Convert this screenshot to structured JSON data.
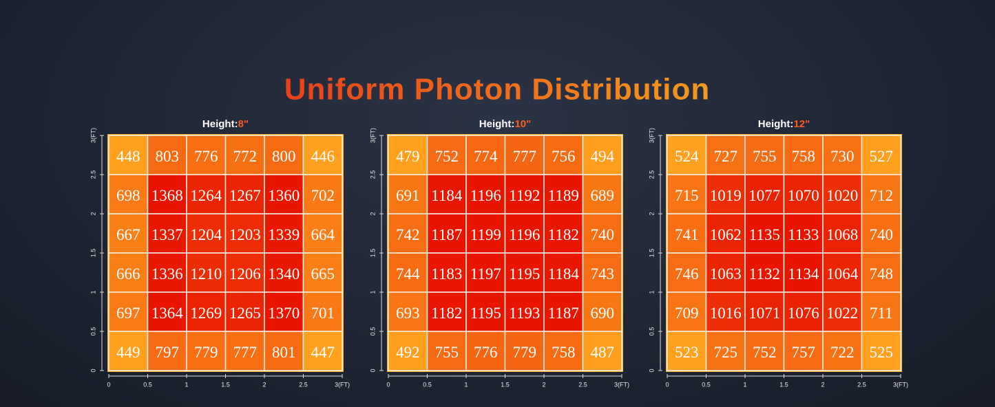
{
  "title": "Uniform Photon Distribution",
  "chart_data": [
    {
      "type": "heatmap",
      "title": "Height:",
      "height": "8\"",
      "xlim": [
        0,
        3
      ],
      "ylim": [
        0,
        3
      ],
      "xticks": [
        0,
        0.5,
        1,
        1.5,
        2,
        2.5,
        {
          "value": 3,
          "label": "3(FT)"
        }
      ],
      "yticks": [
        0,
        0.5,
        1,
        1.5,
        2,
        2.5,
        {
          "value": 3,
          "label": "3(FT)"
        }
      ],
      "values": [
        [
          448,
          803,
          776,
          772,
          800,
          446
        ],
        [
          698,
          1368,
          1264,
          1267,
          1360,
          702
        ],
        [
          667,
          1337,
          1204,
          1203,
          1339,
          664
        ],
        [
          666,
          1336,
          1210,
          1206,
          1340,
          665
        ],
        [
          697,
          1364,
          1269,
          1265,
          1370,
          701
        ],
        [
          449,
          797,
          779,
          777,
          801,
          447
        ]
      ]
    },
    {
      "type": "heatmap",
      "title": "Height:",
      "height": "10\"",
      "xlim": [
        0,
        3
      ],
      "ylim": [
        0,
        3
      ],
      "xticks": [
        0,
        0.5,
        1,
        1.5,
        2,
        2.5,
        {
          "value": 3,
          "label": "3(FT)"
        }
      ],
      "yticks": [
        0,
        0.5,
        1,
        1.5,
        2,
        2.5,
        {
          "value": 3,
          "label": "3(FT)"
        }
      ],
      "values": [
        [
          479,
          752,
          774,
          777,
          756,
          494
        ],
        [
          691,
          1184,
          1196,
          1192,
          1189,
          689
        ],
        [
          742,
          1187,
          1199,
          1196,
          1182,
          740
        ],
        [
          744,
          1183,
          1197,
          1195,
          1184,
          743
        ],
        [
          693,
          1182,
          1195,
          1193,
          1187,
          690
        ],
        [
          492,
          755,
          776,
          779,
          758,
          487
        ]
      ]
    },
    {
      "type": "heatmap",
      "title": "Height:",
      "height": "12\"",
      "xlim": [
        0,
        3
      ],
      "ylim": [
        0,
        3
      ],
      "xticks": [
        0,
        0.5,
        1,
        1.5,
        2,
        2.5,
        {
          "value": 3,
          "label": "3(FT)"
        }
      ],
      "yticks": [
        0,
        0.5,
        1,
        1.5,
        2,
        2.5,
        {
          "value": 3,
          "label": "3(FT)"
        }
      ],
      "values": [
        [
          524,
          727,
          755,
          758,
          730,
          527
        ],
        [
          715,
          1019,
          1077,
          1070,
          1020,
          712
        ],
        [
          741,
          1062,
          1135,
          1133,
          1068,
          740
        ],
        [
          746,
          1063,
          1132,
          1134,
          1064,
          748
        ],
        [
          709,
          1016,
          1071,
          1076,
          1022,
          711
        ],
        [
          523,
          725,
          752,
          757,
          722,
          525
        ]
      ]
    }
  ]
}
